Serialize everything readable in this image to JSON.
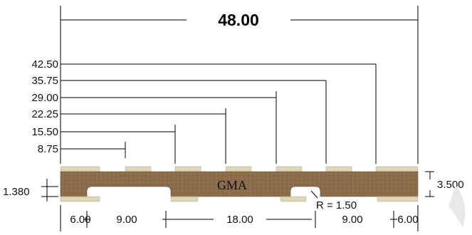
{
  "overall_width_label": "48.00",
  "vertical_dims": [
    "42.50",
    "35.75",
    "29.00",
    "22.25",
    "15.50",
    "8.75"
  ],
  "bottom_dims": [
    "6.00",
    "9.00",
    "18.00",
    "9.00",
    "6.00"
  ],
  "thickness_left_label": "1.380",
  "thickness_right_label": "3.500",
  "radius_label": "R = 1.50",
  "center_label": "GMA",
  "colors": {
    "board": "#8b6c4b",
    "pad": "#ded5b6",
    "line": "#000000"
  }
}
